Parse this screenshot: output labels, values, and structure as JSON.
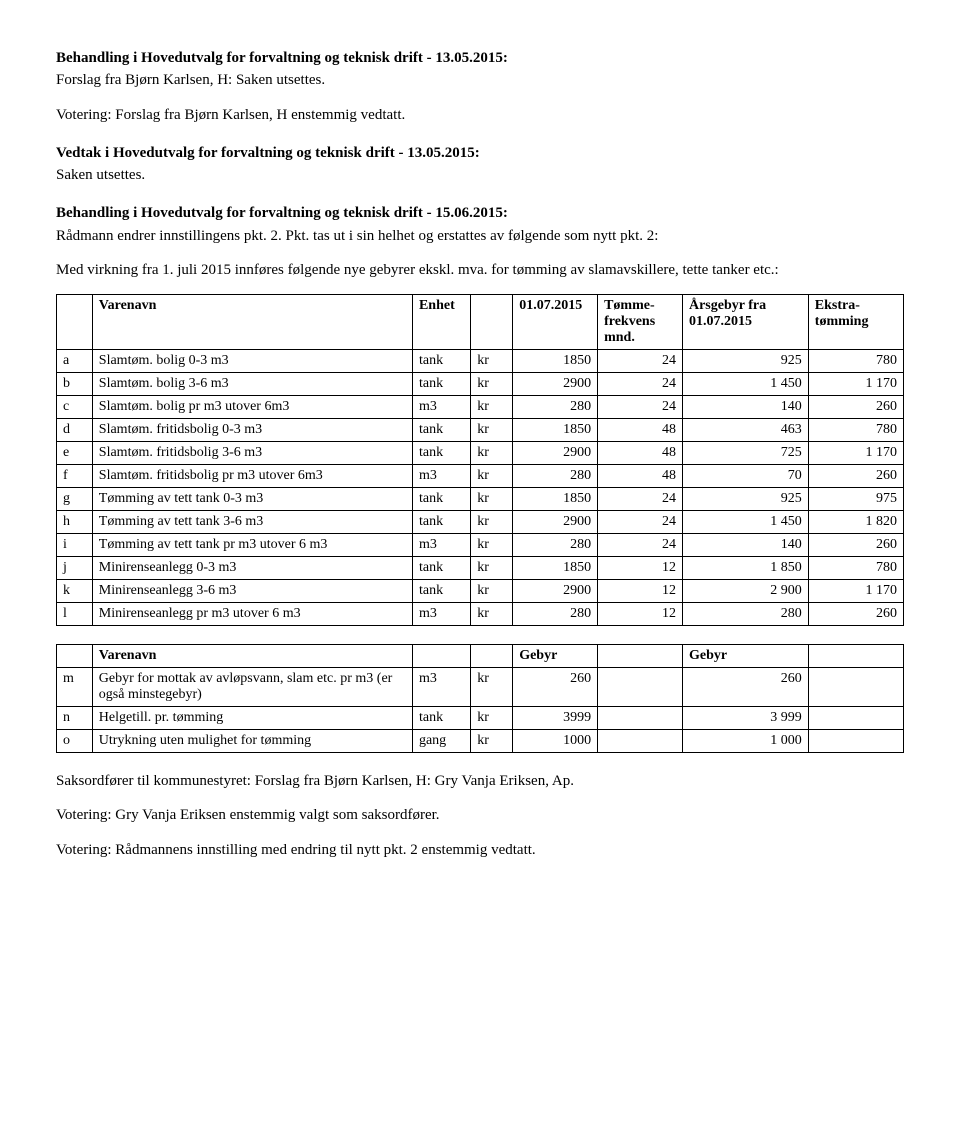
{
  "headings": {
    "h1": "Behandling i Hovedutvalg for forvaltning og teknisk drift - 13.05.2015:",
    "h1_sub": "Forslag fra Bjørn Karlsen, H: Saken utsettes.",
    "h2": "Vedtak i Hovedutvalg for forvaltning og teknisk drift - 13.05.2015:",
    "h2_sub": "Saken utsettes.",
    "h3": "Behandling i Hovedutvalg for forvaltning og teknisk drift - 15.06.2015:"
  },
  "paragraphs": {
    "votering1": "Votering: Forslag fra Bjørn Karlsen, H enstemmig vedtatt.",
    "radmann": "Rådmann endrer innstillingens pkt. 2. Pkt. tas ut i sin helhet og erstattes av følgende som nytt pkt. 2:",
    "virkning": "Med virkning fra 1. juli 2015 innføres følgende nye gebyrer ekskl. mva. for tømming av slamavskillere, tette tanker etc.:",
    "saksordforer": "Saksordfører til kommunestyret: Forslag fra Bjørn Karlsen, H: Gry Vanja Eriksen, Ap.",
    "votering2": "Votering: Gry Vanja Eriksen enstemmig valgt som saksordfører.",
    "votering3": "Votering: Rådmannens innstilling med endring til nytt pkt. 2 enstemmig vedtatt."
  },
  "table1": {
    "headers": {
      "varenavn": "Varenavn",
      "enhet": "Enhet",
      "date": "01.07.2015",
      "tomme": "Tømme-frekvens mnd.",
      "arsgebyr": "Årsgebyr fra 01.07.2015",
      "ekstra": "Ekstra-tømming"
    },
    "rows": [
      {
        "idx": "a",
        "name": "Slamtøm. bolig 0-3 m3",
        "enhet": "tank",
        "kr": "kr",
        "price": "1850",
        "freq": "24",
        "yr": "925",
        "extra": "780"
      },
      {
        "idx": "b",
        "name": "Slamtøm. bolig 3-6 m3",
        "enhet": "tank",
        "kr": "kr",
        "price": "2900",
        "freq": "24",
        "yr": "1 450",
        "extra": "1 170"
      },
      {
        "idx": "c",
        "name": "Slamtøm. bolig pr m3 utover 6m3",
        "enhet": "m3",
        "kr": "kr",
        "price": "280",
        "freq": "24",
        "yr": "140",
        "extra": "260"
      },
      {
        "idx": "d",
        "name": "Slamtøm. fritidsbolig 0-3 m3",
        "enhet": "tank",
        "kr": "kr",
        "price": "1850",
        "freq": "48",
        "yr": "463",
        "extra": "780"
      },
      {
        "idx": "e",
        "name": "Slamtøm. fritidsbolig 3-6 m3",
        "enhet": "tank",
        "kr": "kr",
        "price": "2900",
        "freq": "48",
        "yr": "725",
        "extra": "1 170"
      },
      {
        "idx": "f",
        "name": "Slamtøm. fritidsbolig pr m3 utover 6m3",
        "enhet": "m3",
        "kr": "kr",
        "price": "280",
        "freq": "48",
        "yr": "70",
        "extra": "260"
      },
      {
        "idx": "g",
        "name": "Tømming av tett tank 0-3 m3",
        "enhet": "tank",
        "kr": "kr",
        "price": "1850",
        "freq": "24",
        "yr": "925",
        "extra": "975"
      },
      {
        "idx": "h",
        "name": "Tømming av tett tank 3-6 m3",
        "enhet": "tank",
        "kr": "kr",
        "price": "2900",
        "freq": "24",
        "yr": "1 450",
        "extra": "1 820"
      },
      {
        "idx": "i",
        "name": "Tømming av tett tank pr m3 utover 6 m3",
        "enhet": "m3",
        "kr": "kr",
        "price": "280",
        "freq": "24",
        "yr": "140",
        "extra": "260"
      },
      {
        "idx": "j",
        "name": "Minirenseanlegg 0-3 m3",
        "enhet": "tank",
        "kr": "kr",
        "price": "1850",
        "freq": "12",
        "yr": "1 850",
        "extra": "780"
      },
      {
        "idx": "k",
        "name": "Minirenseanlegg 3-6 m3",
        "enhet": "tank",
        "kr": "kr",
        "price": "2900",
        "freq": "12",
        "yr": "2 900",
        "extra": "1 170"
      },
      {
        "idx": "l",
        "name": "Minirenseanlegg pr m3 utover 6 m3",
        "enhet": "m3",
        "kr": "kr",
        "price": "280",
        "freq": "12",
        "yr": "280",
        "extra": "260"
      }
    ]
  },
  "table2": {
    "headers": {
      "varenavn": "Varenavn",
      "gebyr1": "Gebyr",
      "gebyr2": "Gebyr"
    },
    "rows": [
      {
        "idx": "m",
        "name": "Gebyr for mottak av avløpsvann, slam etc. pr m3 (er også minstegebyr)",
        "enhet": "m3",
        "kr": "kr",
        "price": "260",
        "yr": "260"
      },
      {
        "idx": "n",
        "name": "Helgetill. pr. tømming",
        "enhet": "tank",
        "kr": "kr",
        "price": "3999",
        "yr": "3 999"
      },
      {
        "idx": "o",
        "name": "Utrykning uten mulighet for tømming",
        "enhet": "gang",
        "kr": "kr",
        "price": "1000",
        "yr": "1 000"
      }
    ]
  }
}
